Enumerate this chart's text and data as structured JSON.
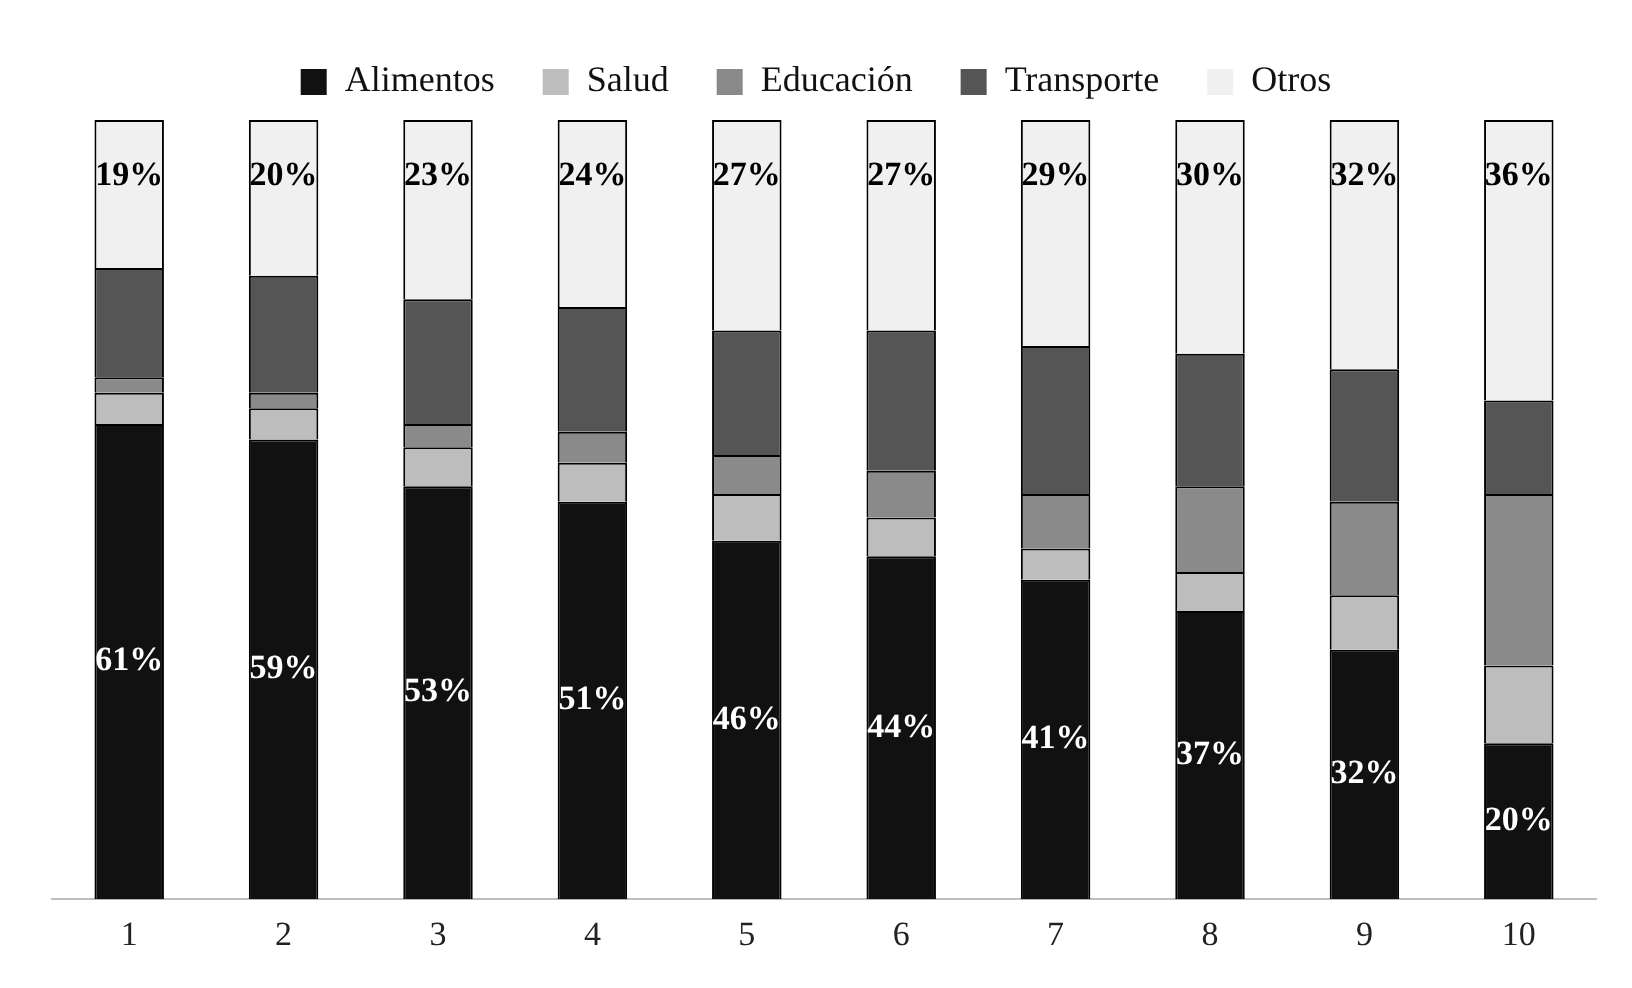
{
  "chart_data": {
    "type": "bar",
    "stacked": true,
    "categories": [
      "1",
      "2",
      "3",
      "4",
      "5",
      "6",
      "7",
      "8",
      "9",
      "10"
    ],
    "ylim": [
      0,
      100
    ],
    "tick_labels": "x",
    "grid": false,
    "legend": "top",
    "series": [
      {
        "name": "Alimentos",
        "color": "#111111",
        "values": [
          61,
          59,
          53,
          51,
          46,
          44,
          41,
          37,
          32,
          20
        ],
        "value_labels": [
          "61%",
          "59%",
          "53%",
          "51%",
          "46%",
          "44%",
          "41%",
          "37%",
          "32%",
          "20%"
        ]
      },
      {
        "name": "Salud",
        "color": "#bdbdbd",
        "values": [
          4,
          4,
          5,
          5,
          6,
          5,
          4,
          5,
          7,
          10
        ]
      },
      {
        "name": "Educación",
        "color": "#8a8a8a",
        "values": [
          2,
          2,
          3,
          4,
          5,
          6,
          7,
          11,
          12,
          22
        ]
      },
      {
        "name": "Transporte",
        "color": "#555555",
        "values": [
          14,
          15,
          16,
          16,
          16,
          18,
          19,
          17,
          17,
          12
        ]
      },
      {
        "name": "Otros",
        "color": "#f0f0f0",
        "values": [
          19,
          20,
          23,
          24,
          27,
          27,
          29,
          30,
          32,
          36
        ],
        "value_labels": [
          "19%",
          "20%",
          "23%",
          "24%",
          "27%",
          "27%",
          "29%",
          "30%",
          "32%",
          "36%"
        ]
      }
    ]
  }
}
